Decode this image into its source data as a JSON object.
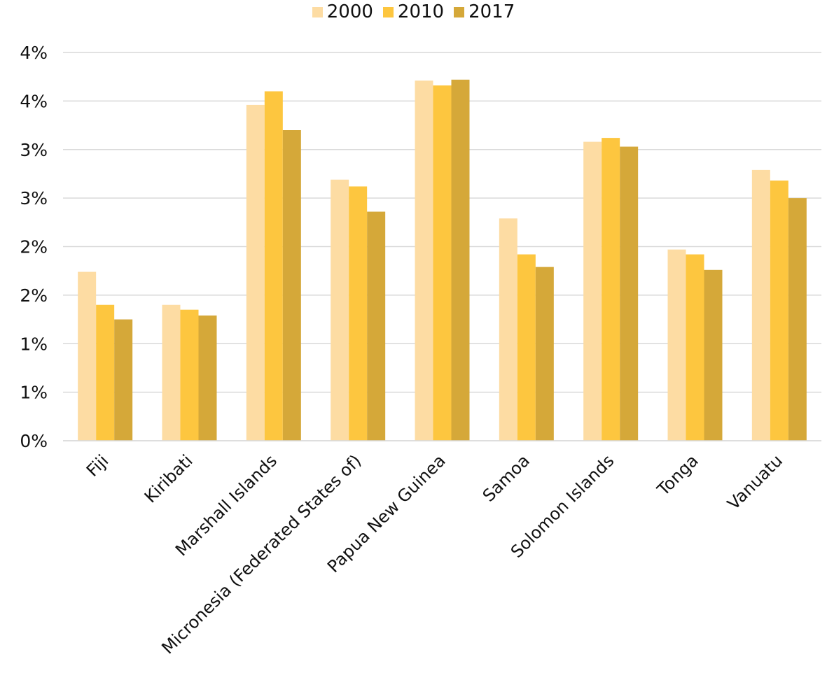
{
  "chart_data": {
    "type": "bar",
    "title": "",
    "xlabel": "",
    "ylabel": "",
    "categories": [
      "Fiji",
      "Kiribati",
      "Marshall Islands",
      "Micronesia (Federated States of)",
      "Papua New Guinea",
      "Samoa",
      "Solomon Islands",
      "Tonga",
      "Vanuatu"
    ],
    "series": [
      {
        "name": "2000",
        "color": "#FDDCA3",
        "values": [
          1.74,
          1.4,
          3.46,
          2.69,
          3.71,
          2.29,
          3.08,
          1.97,
          2.79
        ]
      },
      {
        "name": "2010",
        "color": "#FDC63F",
        "values": [
          1.4,
          1.35,
          3.6,
          2.62,
          3.66,
          1.92,
          3.12,
          1.92,
          2.68
        ]
      },
      {
        "name": "2017",
        "color": "#D5A839",
        "values": [
          1.25,
          1.29,
          3.2,
          2.36,
          3.72,
          1.79,
          3.03,
          1.76,
          2.5
        ]
      }
    ],
    "ylim": [
      0,
      4.0
    ],
    "yticks": [
      0,
      0.5,
      1.0,
      1.5,
      2.0,
      2.5,
      3.0,
      3.5,
      4.0
    ],
    "ytick_labels": [
      "0%",
      "1%",
      "1%",
      "2%",
      "2%",
      "3%",
      "3%",
      "4%",
      "4%"
    ],
    "grid": true,
    "legend_position": "top-center"
  }
}
